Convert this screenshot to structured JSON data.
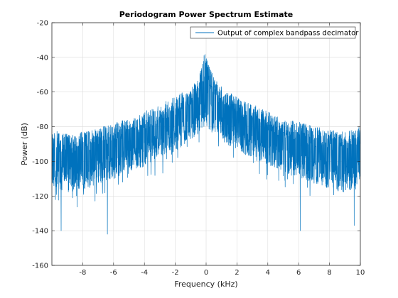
{
  "chart_data": {
    "type": "line",
    "title": "Periodogram Power Spectrum Estimate",
    "xlabel": "Frequency (kHz)",
    "ylabel": "Power (dB)",
    "xlim": [
      -10,
      10
    ],
    "ylim": [
      -160,
      -20
    ],
    "xticks": [
      -8,
      -6,
      -4,
      -2,
      0,
      2,
      4,
      6,
      8,
      10
    ],
    "yticks": [
      -160,
      -140,
      -120,
      -100,
      -80,
      -60,
      -40,
      -20
    ],
    "grid": true,
    "legend_position": "top-right",
    "series": [
      {
        "name": "Output of complex bandpass decimator",
        "color": "#0072bd",
        "x": [
          -10,
          -9,
          -8,
          -7,
          -6,
          -5,
          -4,
          -3,
          -2,
          -1.5,
          -1,
          -0.5,
          -0.2,
          0,
          0.2,
          0.5,
          1,
          1.5,
          2,
          3,
          4,
          5,
          6,
          7,
          8,
          9,
          10
        ],
        "envelope_upper": [
          -82,
          -84,
          -83,
          -81,
          -77,
          -76,
          -71,
          -67,
          -62,
          -60,
          -57,
          -52,
          -42,
          -29,
          -42,
          -52,
          -57,
          -60,
          -63,
          -67,
          -71,
          -76,
          -77,
          -80,
          -81,
          -83,
          -80
        ],
        "envelope_lower": [
          -115,
          -118,
          -116,
          -113,
          -110,
          -106,
          -102,
          -98,
          -94,
          -91,
          -88,
          -84,
          -82,
          -80,
          -82,
          -84,
          -88,
          -91,
          -94,
          -98,
          -102,
          -106,
          -110,
          -113,
          -116,
          -118,
          -115
        ],
        "deep_nulls": [
          {
            "x": -9.4,
            "y": -140
          },
          {
            "x": -6.4,
            "y": -142
          },
          {
            "x": 6.1,
            "y": -140
          },
          {
            "x": 9.6,
            "y": -137
          }
        ]
      }
    ]
  }
}
